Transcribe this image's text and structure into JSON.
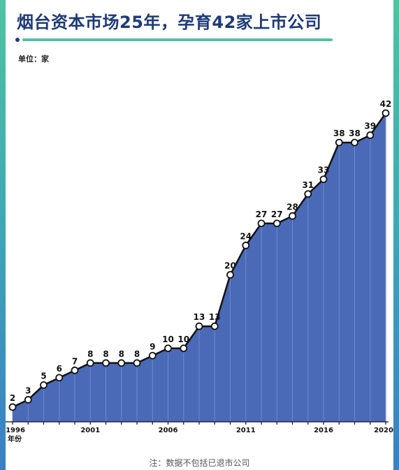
{
  "header": {
    "title": "烟台资本市场25年，孕育42家上市公司",
    "unit": "单位：家"
  },
  "footer": {
    "note": "注：数据不包括已退市公司"
  },
  "chart_data": {
    "type": "area",
    "xlabel": "年份",
    "ylabel": "",
    "series": [
      {
        "x": [
          1996,
          1997,
          1998,
          1999,
          2000,
          2001,
          2002,
          2003,
          2004,
          2005,
          2006,
          2007,
          2008,
          2009,
          2010,
          2011,
          2012,
          2013,
          2014,
          2015,
          2016,
          2017,
          2018,
          2019,
          2020
        ],
        "values": [
          2,
          3,
          5,
          6,
          7,
          8,
          8,
          8,
          8,
          9,
          10,
          10,
          13,
          13,
          20,
          24,
          27,
          27,
          28,
          31,
          33,
          38,
          38,
          39,
          42
        ]
      }
    ],
    "x_tick_labels": [
      "1996",
      "2001",
      "2006",
      "2011",
      "2016",
      "2020"
    ],
    "ylim": [
      0,
      42
    ],
    "grid": false,
    "colors": {
      "fill": "#4a6ab8",
      "line": "#111111",
      "marker": "#ffffff"
    }
  }
}
